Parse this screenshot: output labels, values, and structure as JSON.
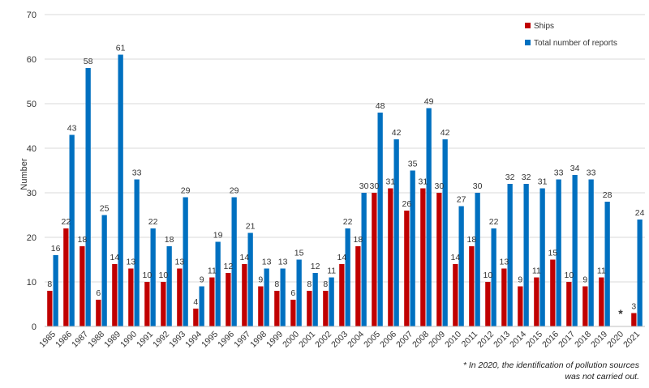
{
  "chart_data": {
    "type": "bar",
    "ylabel": "Number",
    "xlabel": "",
    "ylim": [
      0,
      70
    ],
    "yticks": [
      0,
      10,
      20,
      30,
      40,
      50,
      60,
      70
    ],
    "categories": [
      "1985",
      "1986",
      "1987",
      "1988",
      "1989",
      "1990",
      "1991",
      "1992",
      "1993",
      "1994",
      "1995",
      "1996",
      "1997",
      "1998",
      "1999",
      "2000",
      "2001",
      "2002",
      "2003",
      "2004",
      "2005",
      "2006",
      "2007",
      "2008",
      "2009",
      "2010",
      "2011",
      "2012",
      "2013",
      "2014",
      "2015",
      "2016",
      "2017",
      "2018",
      "2019",
      "2020",
      "2021"
    ],
    "series": [
      {
        "name": "Ships",
        "color": "#c00000",
        "values": [
          8,
          22,
          18,
          6,
          14,
          13,
          10,
          10,
          13,
          4,
          11,
          12,
          14,
          9,
          8,
          6,
          8,
          8,
          14,
          18,
          30,
          31,
          26,
          31,
          30,
          14,
          18,
          10,
          13,
          9,
          11,
          15,
          10,
          9,
          11,
          null,
          3
        ]
      },
      {
        "name": "Total number of reports",
        "color": "#0070c0",
        "values": [
          16,
          43,
          58,
          25,
          61,
          33,
          22,
          18,
          29,
          9,
          19,
          29,
          21,
          13,
          13,
          15,
          12,
          11,
          22,
          30,
          48,
          42,
          35,
          49,
          42,
          27,
          30,
          22,
          32,
          32,
          31,
          33,
          34,
          33,
          28,
          null,
          24
        ]
      }
    ],
    "annotations": [
      {
        "category": "2020",
        "text": "*"
      }
    ],
    "legend_position": "top-right",
    "grid": true
  },
  "footnote": {
    "line1": "* In 2020, the identification of pollution sources",
    "line2": "was not carried out."
  }
}
